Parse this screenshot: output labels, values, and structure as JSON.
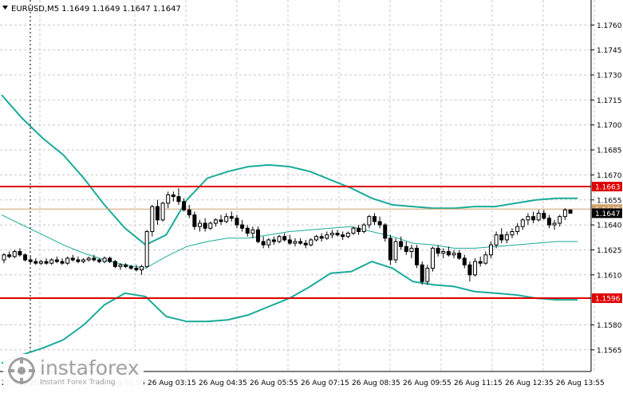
{
  "chart_data": {
    "type": "candlestick",
    "title": "EURUSD,M5  1.1649 1.1649 1.1647 1.1647",
    "y_range": [
      1.1552,
      1.1775
    ],
    "y_ticks": [
      "1.1760",
      "1.1745",
      "1.1730",
      "1.1715",
      "1.1700",
      "1.1685",
      "1.1670",
      "1.1655",
      "1.1640",
      "1.1625",
      "1.1610",
      "1.1580",
      "1.1565"
    ],
    "x_ticks": [
      "25 Aug 2025",
      "26 Aug 01:55",
      "26 Aug 03:15",
      "26 Aug 04:35",
      "26 Aug 05:55",
      "26 Aug 07:15",
      "26 Aug 08:35",
      "26 Aug 09:55",
      "26 Aug 11:15",
      "26 Aug 12:35",
      "26 Aug 13:55"
    ],
    "levels": [
      {
        "value": 1.1663,
        "label": "1.1663",
        "color": "#e00000"
      },
      {
        "value": 1.1596,
        "label": "1.1596",
        "color": "#e00000"
      }
    ],
    "bid_line": {
      "value": 1.16495,
      "label": "1.1649",
      "color": "#d2a06a"
    },
    "current_price": {
      "value": 1.1647,
      "label": "1.1647"
    },
    "candles": [
      [
        1.1619,
        1.1623,
        1.1617,
        1.1622
      ],
      [
        1.1622,
        1.1624,
        1.162,
        1.1621
      ],
      [
        1.1621,
        1.1625,
        1.162,
        1.1624
      ],
      [
        1.1624,
        1.1626,
        1.1621,
        1.1622
      ],
      [
        1.1622,
        1.1623,
        1.1618,
        1.1619
      ],
      [
        1.1619,
        1.1621,
        1.1617,
        1.1618
      ],
      [
        1.1618,
        1.162,
        1.1616,
        1.1617
      ],
      [
        1.1617,
        1.1619,
        1.1616,
        1.1618
      ],
      [
        1.1618,
        1.162,
        1.1616,
        1.1617
      ],
      [
        1.1617,
        1.162,
        1.1616,
        1.1619
      ],
      [
        1.1619,
        1.1621,
        1.1617,
        1.1618
      ],
      [
        1.1618,
        1.162,
        1.1616,
        1.1617
      ],
      [
        1.1617,
        1.1621,
        1.1616,
        1.162
      ],
      [
        1.162,
        1.1622,
        1.1618,
        1.1619
      ],
      [
        1.1619,
        1.1621,
        1.1617,
        1.1618
      ],
      [
        1.1618,
        1.162,
        1.1617,
        1.1619
      ],
      [
        1.1619,
        1.1621,
        1.1618,
        1.162
      ],
      [
        1.162,
        1.1622,
        1.1618,
        1.1619
      ],
      [
        1.1619,
        1.162,
        1.1617,
        1.1618
      ],
      [
        1.1618,
        1.1621,
        1.1617,
        1.162
      ],
      [
        1.162,
        1.1621,
        1.1617,
        1.1618
      ],
      [
        1.1618,
        1.1619,
        1.1614,
        1.1615
      ],
      [
        1.1615,
        1.1617,
        1.1613,
        1.1616
      ],
      [
        1.1616,
        1.1617,
        1.1614,
        1.1615
      ],
      [
        1.1615,
        1.1616,
        1.1613,
        1.1614
      ],
      [
        1.1614,
        1.1616,
        1.1612,
        1.1613
      ],
      [
        1.1613,
        1.1616,
        1.161,
        1.1615
      ],
      [
        1.1615,
        1.1637,
        1.1614,
        1.1636
      ],
      [
        1.1636,
        1.1652,
        1.1633,
        1.1651
      ],
      [
        1.1651,
        1.1655,
        1.164,
        1.1643
      ],
      [
        1.1643,
        1.1654,
        1.1642,
        1.1653
      ],
      [
        1.1653,
        1.166,
        1.165,
        1.1658
      ],
      [
        1.1658,
        1.166,
        1.1654,
        1.1657
      ],
      [
        1.1657,
        1.1662,
        1.1652,
        1.1654
      ],
      [
        1.1654,
        1.1656,
        1.1648,
        1.1649
      ],
      [
        1.1649,
        1.1652,
        1.1644,
        1.1646
      ],
      [
        1.1646,
        1.1648,
        1.1637,
        1.1639
      ],
      [
        1.1639,
        1.1643,
        1.1636,
        1.1641
      ],
      [
        1.1641,
        1.1644,
        1.1636,
        1.1638
      ],
      [
        1.1638,
        1.1642,
        1.1637,
        1.1641
      ],
      [
        1.1641,
        1.1644,
        1.1639,
        1.1643
      ],
      [
        1.1643,
        1.1646,
        1.164,
        1.1642
      ],
      [
        1.1642,
        1.1647,
        1.1641,
        1.1645
      ],
      [
        1.1645,
        1.1648,
        1.1642,
        1.1644
      ],
      [
        1.1644,
        1.1646,
        1.1638,
        1.164
      ],
      [
        1.164,
        1.1643,
        1.1636,
        1.1638
      ],
      [
        1.1638,
        1.164,
        1.1633,
        1.1635
      ],
      [
        1.1635,
        1.1639,
        1.1632,
        1.1637
      ],
      [
        1.1637,
        1.1639,
        1.1629,
        1.163
      ],
      [
        1.163,
        1.1633,
        1.1626,
        1.1628
      ],
      [
        1.1628,
        1.1632,
        1.1626,
        1.1631
      ],
      [
        1.1631,
        1.1633,
        1.1628,
        1.163
      ],
      [
        1.163,
        1.1634,
        1.1629,
        1.1633
      ],
      [
        1.1633,
        1.1635,
        1.163,
        1.1631
      ],
      [
        1.1631,
        1.1634,
        1.1628,
        1.1629
      ],
      [
        1.1629,
        1.1632,
        1.1627,
        1.163
      ],
      [
        1.163,
        1.1632,
        1.1628,
        1.1629
      ],
      [
        1.1629,
        1.1631,
        1.1626,
        1.1628
      ],
      [
        1.1628,
        1.1632,
        1.1627,
        1.1631
      ],
      [
        1.1631,
        1.1634,
        1.163,
        1.1633
      ],
      [
        1.1633,
        1.1635,
        1.163,
        1.1632
      ],
      [
        1.1632,
        1.1636,
        1.1631,
        1.1634
      ],
      [
        1.1634,
        1.1637,
        1.1632,
        1.1635
      ],
      [
        1.1635,
        1.1637,
        1.1633,
        1.1634
      ],
      [
        1.1634,
        1.1636,
        1.1631,
        1.1633
      ],
      [
        1.1633,
        1.1636,
        1.1632,
        1.1635
      ],
      [
        1.1635,
        1.1639,
        1.1634,
        1.1638
      ],
      [
        1.1638,
        1.164,
        1.1634,
        1.1636
      ],
      [
        1.1636,
        1.1641,
        1.1635,
        1.164
      ],
      [
        1.164,
        1.1646,
        1.1638,
        1.1645
      ],
      [
        1.1645,
        1.1647,
        1.164,
        1.1642
      ],
      [
        1.1642,
        1.1645,
        1.1638,
        1.164
      ],
      [
        1.164,
        1.1641,
        1.163,
        1.1632
      ],
      [
        1.1632,
        1.1634,
        1.1616,
        1.1619
      ],
      [
        1.1619,
        1.1632,
        1.1617,
        1.163
      ],
      [
        1.163,
        1.1633,
        1.1625,
        1.1627
      ],
      [
        1.1627,
        1.163,
        1.1622,
        1.1624
      ],
      [
        1.1624,
        1.1628,
        1.162,
        1.1626
      ],
      [
        1.1626,
        1.1628,
        1.1614,
        1.1616
      ],
      [
        1.1616,
        1.1618,
        1.1604,
        1.1606
      ],
      [
        1.1606,
        1.1616,
        1.1604,
        1.1614
      ],
      [
        1.1614,
        1.1627,
        1.1612,
        1.1626
      ],
      [
        1.1626,
        1.1628,
        1.1621,
        1.1623
      ],
      [
        1.1623,
        1.1626,
        1.162,
        1.1624
      ],
      [
        1.1624,
        1.1627,
        1.1621,
        1.1622
      ],
      [
        1.1622,
        1.1625,
        1.162,
        1.1623
      ],
      [
        1.1623,
        1.1625,
        1.1619,
        1.162
      ],
      [
        1.162,
        1.1622,
        1.1614,
        1.1616
      ],
      [
        1.1616,
        1.1618,
        1.1606,
        1.161
      ],
      [
        1.161,
        1.162,
        1.1609,
        1.1618
      ],
      [
        1.1618,
        1.1621,
        1.1615,
        1.1617
      ],
      [
        1.1617,
        1.1624,
        1.1616,
        1.1622
      ],
      [
        1.1622,
        1.163,
        1.162,
        1.1628
      ],
      [
        1.1628,
        1.1636,
        1.1626,
        1.1634
      ],
      [
        1.1634,
        1.1638,
        1.1629,
        1.1631
      ],
      [
        1.1631,
        1.1636,
        1.1629,
        1.1634
      ],
      [
        1.1634,
        1.1638,
        1.1632,
        1.1636
      ],
      [
        1.1636,
        1.1641,
        1.1634,
        1.1639
      ],
      [
        1.1639,
        1.1644,
        1.1637,
        1.1643
      ],
      [
        1.1643,
        1.1647,
        1.164,
        1.1645
      ],
      [
        1.1645,
        1.1648,
        1.1641,
        1.1643
      ],
      [
        1.1643,
        1.1649,
        1.1642,
        1.1647
      ],
      [
        1.1647,
        1.1649,
        1.1643,
        1.1644
      ],
      [
        1.1644,
        1.1646,
        1.1638,
        1.164
      ],
      [
        1.164,
        1.1643,
        1.1637,
        1.1641
      ],
      [
        1.1641,
        1.1646,
        1.1639,
        1.1645
      ],
      [
        1.1645,
        1.165,
        1.1643,
        1.1649
      ],
      [
        1.1649,
        1.1649,
        1.1647,
        1.1647
      ]
    ],
    "bands_upper": [
      1.1718,
      1.1704,
      1.1692,
      1.1682,
      1.1668,
      1.1652,
      1.1638,
      1.1628,
      1.1634,
      1.1655,
      1.1668,
      1.1672,
      1.1675,
      1.1676,
      1.1675,
      1.1672,
      1.1667,
      1.1662,
      1.1656,
      1.1652,
      1.1651,
      1.165,
      1.165,
      1.1651,
      1.1651,
      1.1653,
      1.1655,
      1.1656,
      1.1656
    ],
    "bands_middle": [
      1.1646,
      1.164,
      1.1634,
      1.1628,
      1.1623,
      1.1619,
      1.1616,
      1.1614,
      1.1621,
      1.1627,
      1.163,
      1.1632,
      1.1632,
      1.1634,
      1.1636,
      1.1637,
      1.1638,
      1.1639,
      1.1636,
      1.1633,
      1.1629,
      1.1628,
      1.1626,
      1.1626,
      1.1627,
      1.1628,
      1.1629,
      1.163,
      1.163
    ],
    "bands_lower": [
      1.1557,
      1.1562,
      1.1566,
      1.1571,
      1.158,
      1.1592,
      1.1599,
      1.1597,
      1.1585,
      1.1582,
      1.1582,
      1.1583,
      1.1586,
      1.1591,
      1.1596,
      1.1603,
      1.1611,
      1.1612,
      1.1618,
      1.1614,
      1.1606,
      1.1604,
      1.1603,
      1.16,
      1.1599,
      1.1598,
      1.1596,
      1.1595,
      1.1595
    ],
    "colors": {
      "candle": "#000000",
      "band": "#1aaa9a",
      "grid": "#c8c8c8",
      "axis": "#000000",
      "label_bg": "#000000",
      "label_text": "#ffffff"
    }
  },
  "watermark": {
    "brand": "instaforex",
    "tagline": "Instant Forex Trading",
    "logo_icon": "instaforex-logo-icon"
  }
}
